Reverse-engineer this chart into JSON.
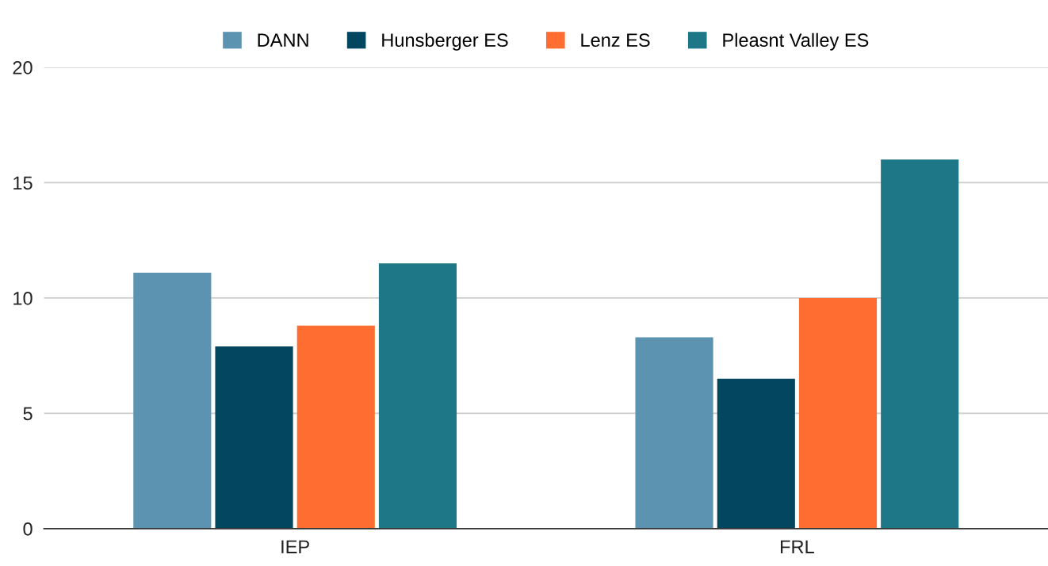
{
  "chart_data": {
    "type": "bar",
    "categories": [
      "IEP",
      "FRL"
    ],
    "series": [
      {
        "name": "DANN",
        "color": "#5b93b0",
        "values": [
          11.1,
          8.3
        ]
      },
      {
        "name": "Hunsberger ES",
        "color": "#02465f",
        "values": [
          7.9,
          6.5
        ]
      },
      {
        "name": "Lenz ES",
        "color": "#ff6d31",
        "values": [
          8.8,
          10.0
        ]
      },
      {
        "name": "Pleasnt Valley ES",
        "color": "#1e7787",
        "values": [
          11.5,
          16
        ]
      }
    ],
    "ylim": [
      0,
      20
    ],
    "yticks": [
      0,
      5,
      10,
      15,
      20
    ],
    "grid": "y",
    "legend": "top"
  }
}
